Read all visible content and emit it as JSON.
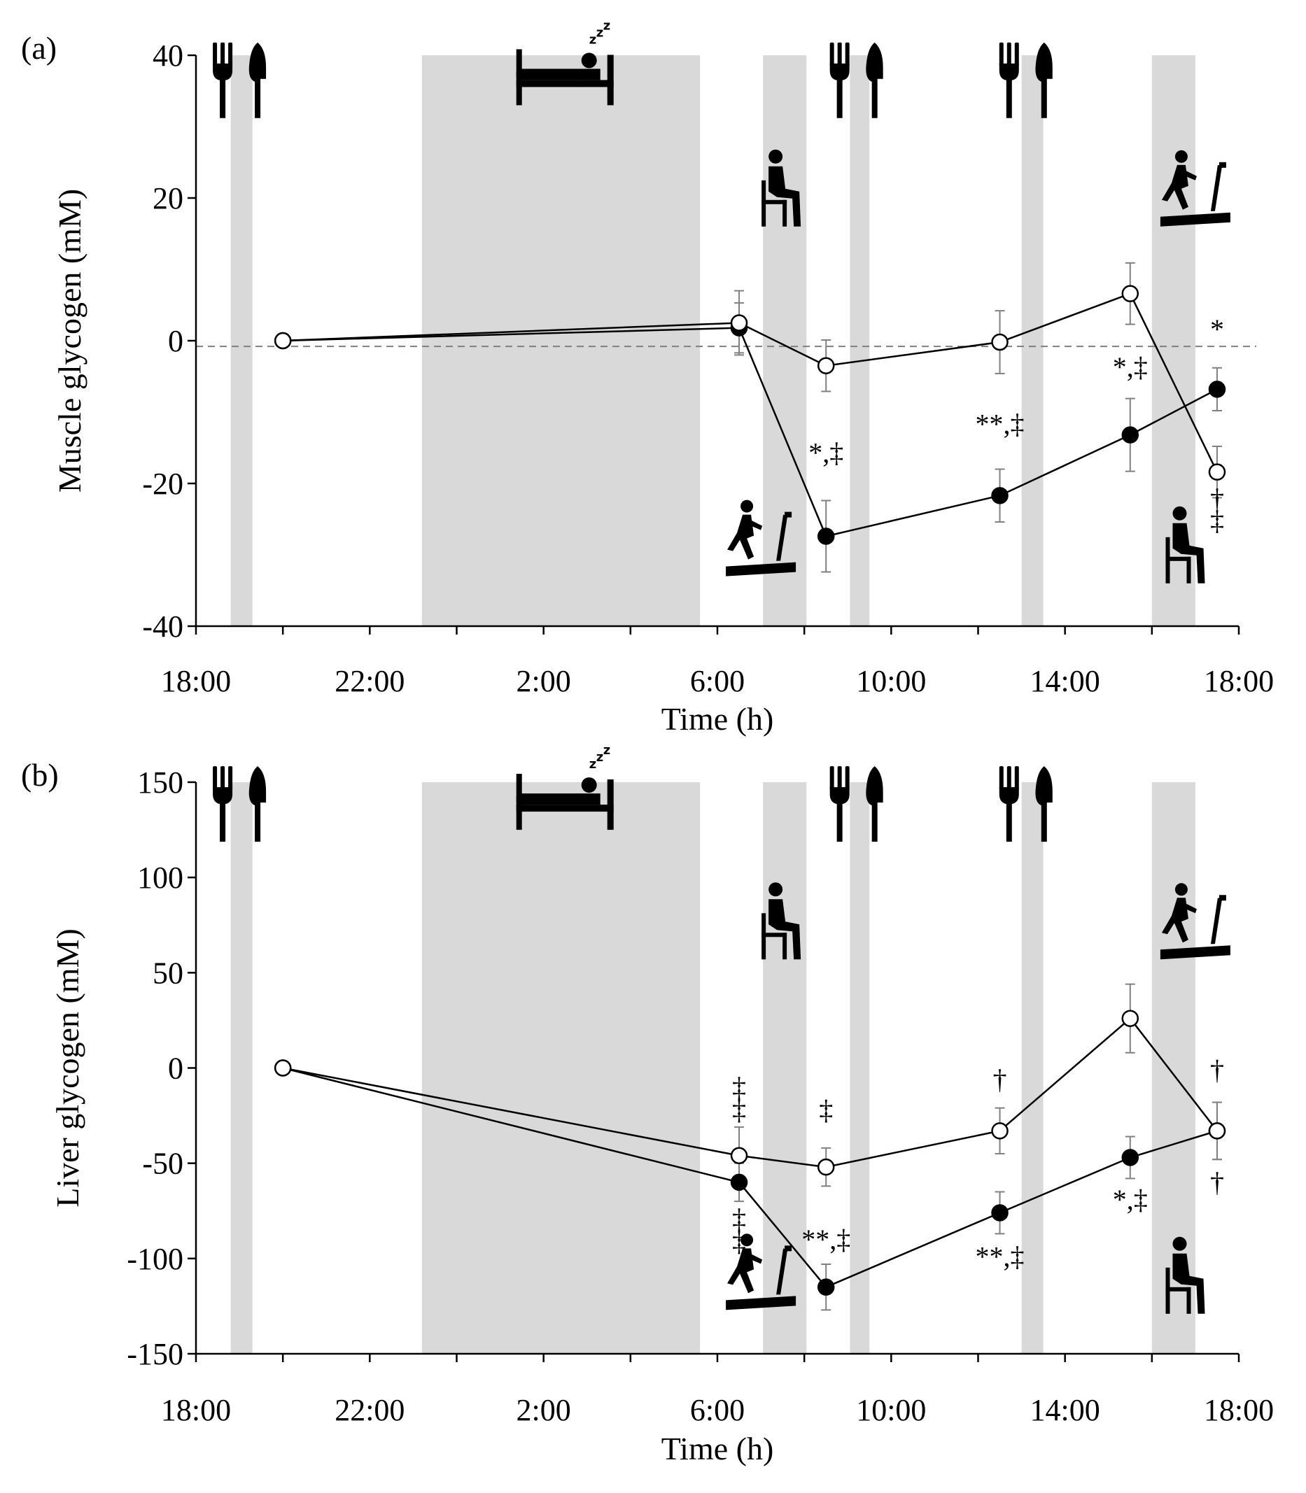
{
  "chart_data": [
    {
      "panel": "(a)",
      "type": "line",
      "ylabel": "Muscle glycogen (mM)",
      "xlabel": "Time (h)",
      "ylim": [
        -40,
        40
      ],
      "yticks": [
        "40",
        "20",
        "0",
        "-20",
        "-40"
      ],
      "ytick_values": [
        40,
        20,
        0,
        -20,
        -40
      ],
      "xlim": [
        18,
        42
      ],
      "xticks": [
        "18:00",
        "22:00",
        "2:00",
        "6:00",
        "10:00",
        "14:00",
        "18:00"
      ],
      "xtick_values": [
        18,
        22,
        26,
        30,
        34,
        38,
        42
      ],
      "grid": false,
      "reference_line": -0.8,
      "shaded_periods": [
        [
          18.8,
          19.3
        ],
        [
          23.2,
          29.6
        ],
        [
          31.05,
          32.05
        ],
        [
          33.05,
          33.5
        ],
        [
          37.0,
          37.5
        ],
        [
          40.0,
          41.0
        ]
      ],
      "icons": [
        {
          "name": "meal-icon",
          "t": 19.0,
          "v": 31
        },
        {
          "name": "sleep-icon",
          "t": 26.5,
          "v": 33
        },
        {
          "name": "meal-icon",
          "t": 33.2,
          "v": 31
        },
        {
          "name": "meal-icon",
          "t": 37.1,
          "v": 31
        },
        {
          "name": "sitting-icon",
          "t": 31.5,
          "v": 16
        },
        {
          "name": "treadmill-icon",
          "t": 41.0,
          "v": 16
        },
        {
          "name": "treadmill-icon",
          "t": 31.0,
          "v": -33
        },
        {
          "name": "sitting-icon",
          "t": 40.8,
          "v": -34
        }
      ],
      "series": [
        {
          "name": "open circles",
          "marker": "open",
          "x": [
            20,
            30.5,
            32.5,
            36.5,
            39.5,
            41.5
          ],
          "y": [
            0,
            2.5,
            -3.5,
            -0.2,
            6.6,
            -18.4
          ],
          "err": [
            0,
            4.5,
            3.6,
            4.4,
            4.3,
            3.6
          ]
        },
        {
          "name": "filled circles",
          "marker": "filled",
          "x": [
            20,
            30.5,
            32.5,
            36.5,
            39.5,
            41.5
          ],
          "y": [
            0,
            1.8,
            -27.4,
            -21.7,
            -13.2,
            -6.8
          ],
          "err": [
            0,
            3.5,
            5.0,
            3.7,
            5.1,
            3.0
          ]
        }
      ],
      "annotations": [
        {
          "text": "*,‡",
          "t": 32.5,
          "v": -17
        },
        {
          "text": "**,‡",
          "t": 36.5,
          "v": -13
        },
        {
          "text": "*,‡",
          "t": 39.5,
          "v": -5
        },
        {
          "text": "*",
          "t": 41.5,
          "v": 0.3
        },
        {
          "text": "†",
          "t": 41.5,
          "v": -23.5
        },
        {
          "text": "‡",
          "t": 41.5,
          "v": -26.5
        }
      ]
    },
    {
      "panel": "(b)",
      "type": "line",
      "ylabel": "Liver glycogen (mM)",
      "xlabel": "Time (h)",
      "ylim": [
        -150,
        150
      ],
      "yticks": [
        "150",
        "100",
        "50",
        "0",
        "-50",
        "-100",
        "-150"
      ],
      "ytick_values": [
        150,
        100,
        50,
        0,
        -50,
        -100,
        -150
      ],
      "xlim": [
        18,
        42
      ],
      "xticks": [
        "18:00",
        "22:00",
        "2:00",
        "6:00",
        "10:00",
        "14:00",
        "18:00"
      ],
      "xtick_values": [
        18,
        22,
        26,
        30,
        34,
        38,
        42
      ],
      "grid": false,
      "shaded_periods": [
        [
          18.8,
          19.3
        ],
        [
          23.2,
          29.6
        ],
        [
          31.05,
          32.05
        ],
        [
          33.05,
          33.5
        ],
        [
          37.0,
          37.5
        ],
        [
          40.0,
          41.0
        ]
      ],
      "icons": [
        {
          "name": "meal-icon",
          "t": 19.0,
          "v": 118
        },
        {
          "name": "sleep-icon",
          "t": 26.5,
          "v": 125
        },
        {
          "name": "meal-icon",
          "t": 33.2,
          "v": 118
        },
        {
          "name": "meal-icon",
          "t": 37.1,
          "v": 118
        },
        {
          "name": "sitting-icon",
          "t": 31.5,
          "v": 57
        },
        {
          "name": "treadmill-icon",
          "t": 41.0,
          "v": 57
        },
        {
          "name": "treadmill-icon",
          "t": 31.0,
          "v": -127
        },
        {
          "name": "sitting-icon",
          "t": 40.8,
          "v": -129
        }
      ],
      "series": [
        {
          "name": "open circles",
          "marker": "open",
          "x": [
            20,
            30.5,
            32.5,
            36.5,
            39.5,
            41.5
          ],
          "y": [
            0,
            -46,
            -52,
            -33,
            26,
            -33
          ],
          "err": [
            0,
            15,
            10,
            12,
            18,
            15
          ]
        },
        {
          "name": "filled circles",
          "marker": "filled",
          "x": [
            20,
            30.5,
            32.5,
            36.5,
            39.5,
            41.5
          ],
          "y": [
            0,
            -60,
            -115,
            -76,
            -47,
            -33
          ],
          "err": [
            0,
            10,
            12,
            11,
            11,
            15
          ]
        }
      ],
      "annotations": [
        {
          "text": "‡",
          "t": 30.5,
          "v": -15
        },
        {
          "text": "‡",
          "t": 30.5,
          "v": -27
        },
        {
          "text": "‡",
          "t": 32.5,
          "v": -27
        },
        {
          "text": "†",
          "t": 36.5,
          "v": -11
        },
        {
          "text": "†",
          "t": 41.5,
          "v": -6
        },
        {
          "text": "‡",
          "t": 30.5,
          "v": -84
        },
        {
          "text": "‡",
          "t": 30.5,
          "v": -96
        },
        {
          "text": "**,‡",
          "t": 32.5,
          "v": -95
        },
        {
          "text": "**,‡",
          "t": 36.5,
          "v": -104
        },
        {
          "text": "*,‡",
          "t": 39.5,
          "v": -74
        },
        {
          "text": "†",
          "t": 41.5,
          "v": -65
        }
      ]
    }
  ]
}
